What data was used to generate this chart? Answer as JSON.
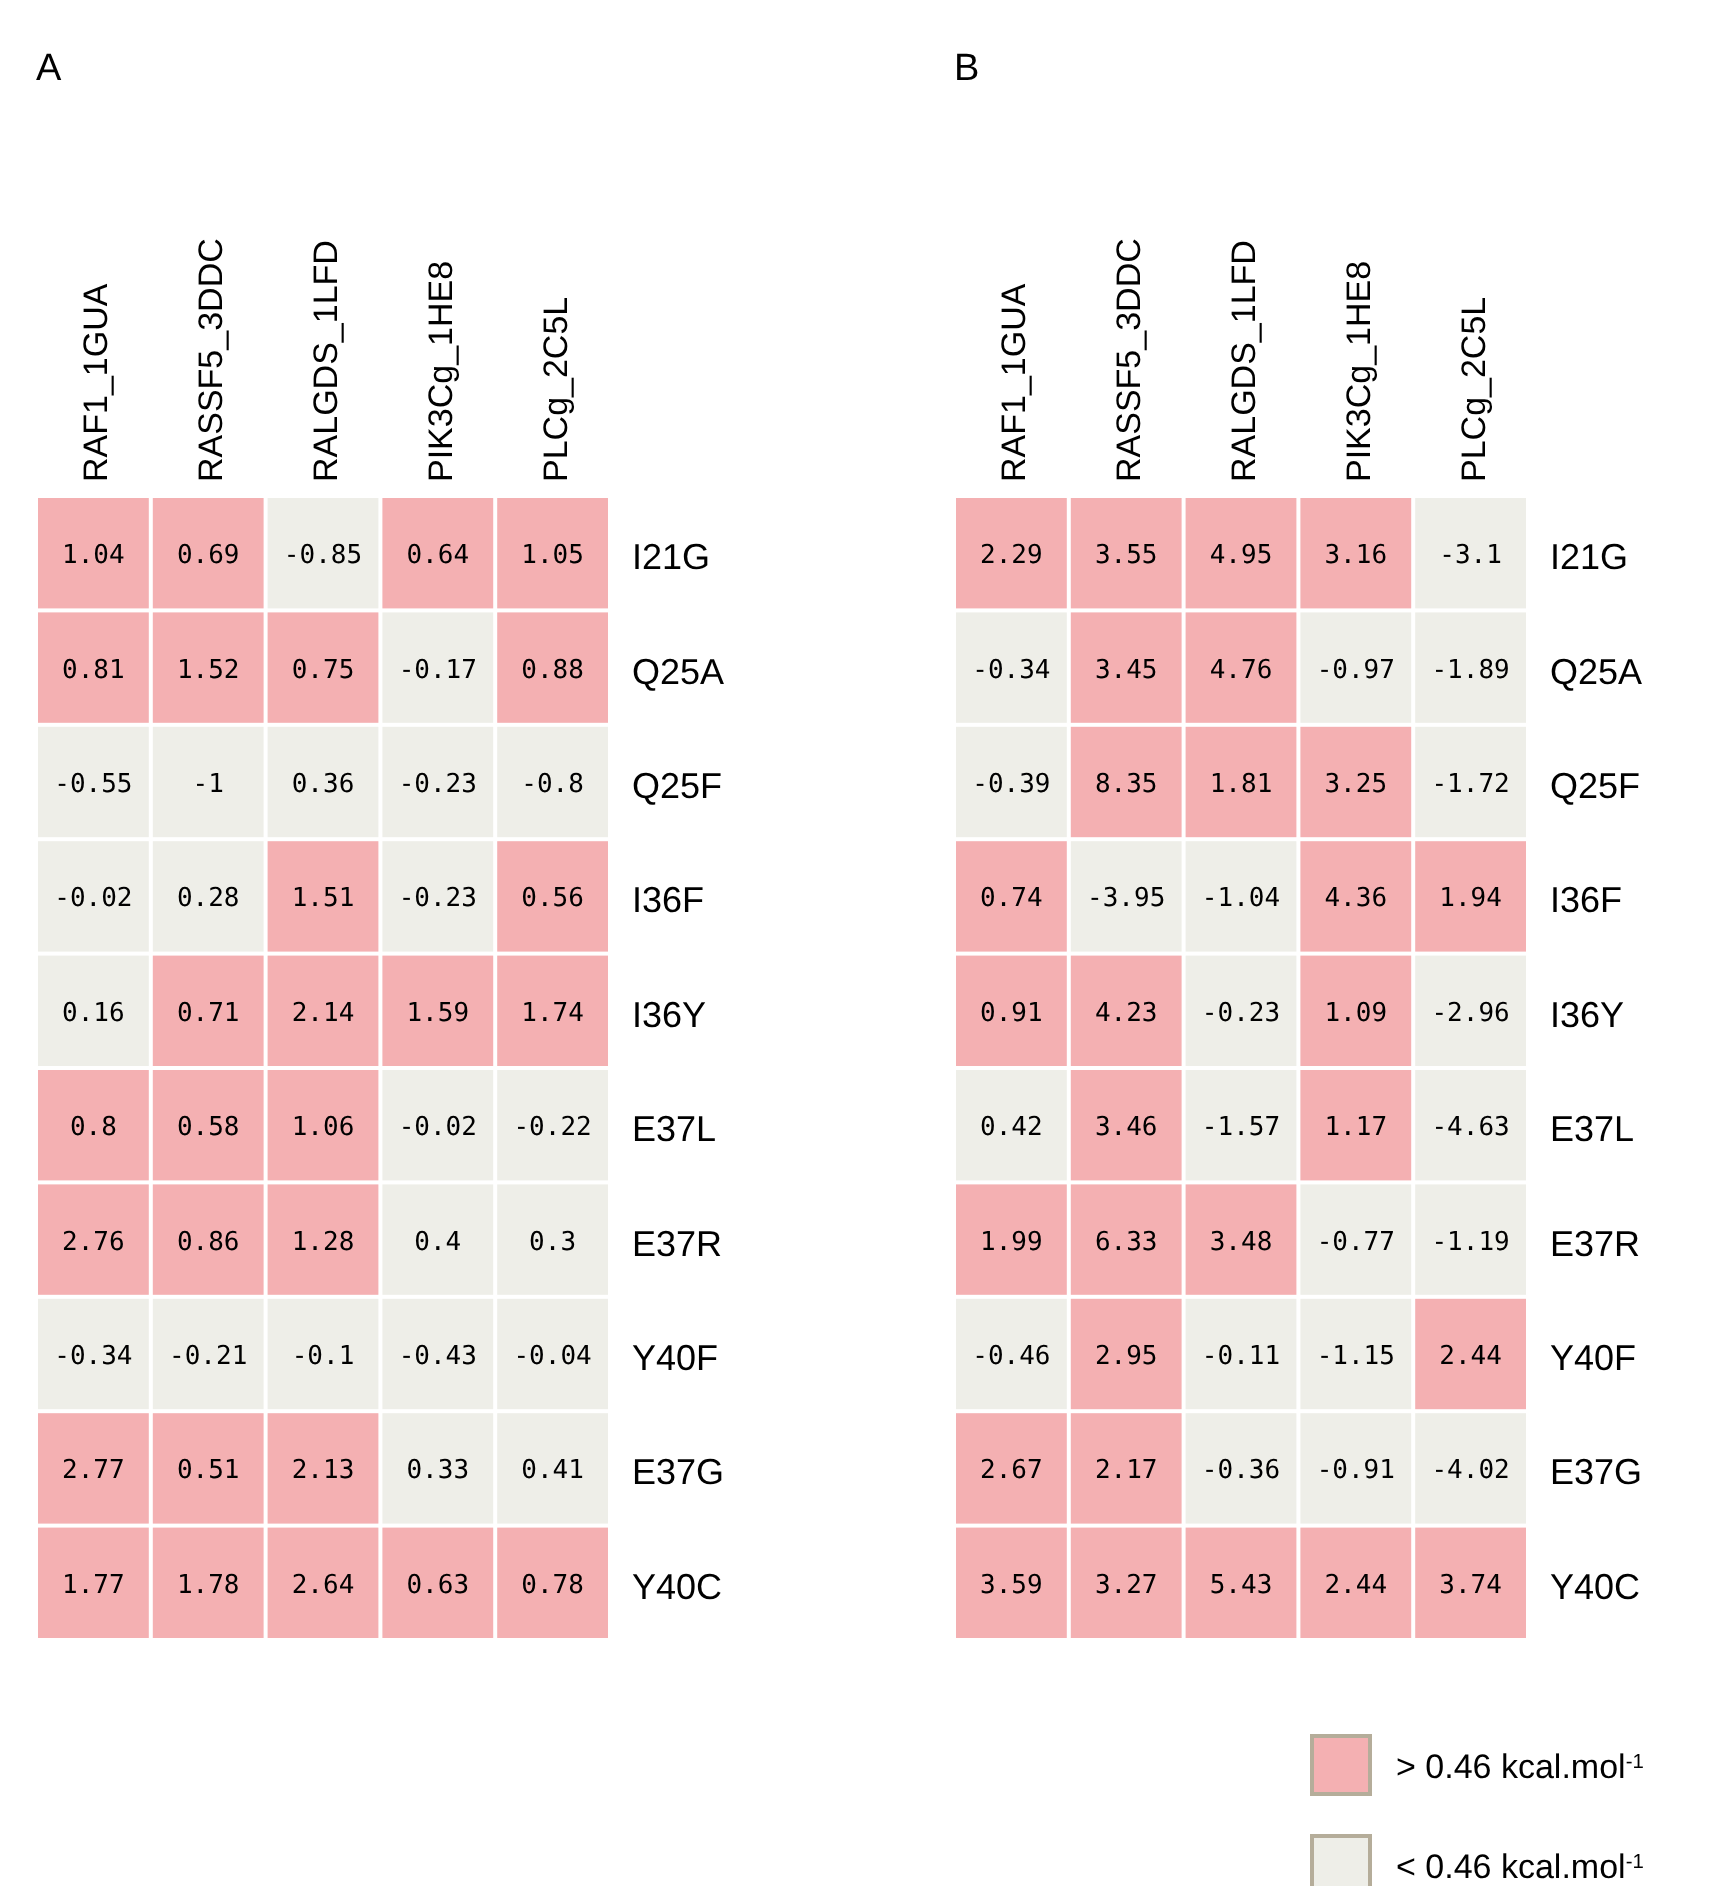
{
  "chart_data": [
    {
      "type": "heatmap",
      "title": "A",
      "categories": [
        "RAF1_1GUA",
        "RASSF5_3DDC",
        "RALGDS_1LFD",
        "PIK3Cg_1HE8",
        "PLCg_2C5L"
      ],
      "y_categories": [
        "I21G",
        "Q25A",
        "Q25F",
        "I36F",
        "I36Y",
        "E37L",
        "E37R",
        "Y40F",
        "E37G",
        "Y40C"
      ],
      "cells": [
        [
          1.04,
          0.69,
          -0.85,
          0.64,
          1.05
        ],
        [
          0.81,
          1.52,
          0.75,
          -0.17,
          0.88
        ],
        [
          -0.55,
          -1,
          0.36,
          -0.23,
          -0.8
        ],
        [
          -0.02,
          0.28,
          1.51,
          -0.23,
          0.56
        ],
        [
          0.16,
          0.71,
          2.14,
          1.59,
          1.74
        ],
        [
          0.8,
          0.58,
          1.06,
          -0.02,
          -0.22
        ],
        [
          2.76,
          0.86,
          1.28,
          0.4,
          0.3
        ],
        [
          -0.34,
          -0.21,
          -0.1,
          -0.43,
          -0.04
        ],
        [
          2.77,
          0.51,
          2.13,
          0.33,
          0.41
        ],
        [
          1.77,
          1.78,
          2.64,
          0.63,
          0.78
        ]
      ],
      "colors": [
        [
          "#f4b0b2",
          "#f4b0b2",
          "#eeeee8",
          "#f4b0b2",
          "#f4b0b2"
        ],
        [
          "#f4b0b2",
          "#f4b0b2",
          "#f4b0b2",
          "#eeeee8",
          "#f4b0b2"
        ],
        [
          "#eeeee8",
          "#eeeee8",
          "#eeeee8",
          "#eeeee8",
          "#eeeee8"
        ],
        [
          "#eeeee8",
          "#eeeee8",
          "#f4b0b2",
          "#eeeee8",
          "#f4b0b2"
        ],
        [
          "#eeeee8",
          "#f4b0b2",
          "#f4b0b2",
          "#f4b0b2",
          "#f4b0b2"
        ],
        [
          "#f4b0b2",
          "#f4b0b2",
          "#f4b0b2",
          "#eeeee8",
          "#eeeee8"
        ],
        [
          "#f4b0b2",
          "#f4b0b2",
          "#f4b0b2",
          "#eeeee8",
          "#eeeee8"
        ],
        [
          "#eeeee8",
          "#eeeee8",
          "#eeeee8",
          "#eeeee8",
          "#eeeee8"
        ],
        [
          "#f4b0b2",
          "#f4b0b2",
          "#f4b0b2",
          "#eeeee8",
          "#eeeee8"
        ],
        [
          "#f4b0b2",
          "#f4b0b2",
          "#f4b0b2",
          "#f4b0b2",
          "#f4b0b2"
        ]
      ],
      "data_labels": true
    },
    {
      "type": "heatmap",
      "title": "B",
      "categories": [
        "RAF1_1GUA",
        "RASSF5_3DDC",
        "RALGDS_1LFD",
        "PIK3Cg_1HE8",
        "PLCg_2C5L"
      ],
      "y_categories": [
        "I21G",
        "Q25A",
        "Q25F",
        "I36F",
        "I36Y",
        "E37L",
        "E37R",
        "Y40F",
        "E37G",
        "Y40C"
      ],
      "cells": [
        [
          2.29,
          3.55,
          4.95,
          3.16,
          -3.1
        ],
        [
          -0.34,
          3.45,
          4.76,
          -0.97,
          -1.89
        ],
        [
          -0.39,
          8.35,
          1.81,
          3.25,
          -1.72
        ],
        [
          0.74,
          -3.95,
          -1.04,
          4.36,
          1.94
        ],
        [
          0.91,
          4.23,
          -0.23,
          1.09,
          -2.96
        ],
        [
          0.42,
          3.46,
          -1.57,
          1.17,
          -4.63
        ],
        [
          1.99,
          6.33,
          3.48,
          -0.77,
          -1.19
        ],
        [
          -0.46,
          2.95,
          -0.11,
          -1.15,
          2.44
        ],
        [
          2.67,
          2.17,
          -0.36,
          -0.91,
          -4.02
        ],
        [
          3.59,
          3.27,
          5.43,
          2.44,
          3.74
        ]
      ],
      "colors": [
        [
          "#f4b0b2",
          "#f4b0b2",
          "#f4b0b2",
          "#f4b0b2",
          "#eeeee8"
        ],
        [
          "#eeeee8",
          "#f4b0b2",
          "#f4b0b2",
          "#eeeee8",
          "#eeeee8"
        ],
        [
          "#eeeee8",
          "#f4b0b2",
          "#f4b0b2",
          "#f4b0b2",
          "#eeeee8"
        ],
        [
          "#f4b0b2",
          "#eeeee8",
          "#eeeee8",
          "#f4b0b2",
          "#f4b0b2"
        ],
        [
          "#f4b0b2",
          "#f4b0b2",
          "#eeeee8",
          "#f4b0b2",
          "#eeeee8"
        ],
        [
          "#eeeee8",
          "#f4b0b2",
          "#eeeee8",
          "#f4b0b2",
          "#eeeee8"
        ],
        [
          "#f4b0b2",
          "#f4b0b2",
          "#f4b0b2",
          "#eeeee8",
          "#eeeee8"
        ],
        [
          "#eeeee8",
          "#f4b0b2",
          "#eeeee8",
          "#eeeee8",
          "#f4b0b2"
        ],
        [
          "#f4b0b2",
          "#f4b0b2",
          "#eeeee8",
          "#eeeee8",
          "#eeeee8"
        ],
        [
          "#f4b0b2",
          "#f4b0b2",
          "#f4b0b2",
          "#f4b0b2",
          "#f4b0b2"
        ]
      ],
      "data_labels": true
    },
    {
      "type": "other",
      "annotations": [
        "> 0.46 kcal.mol$^{-1}$",
        "< 0.46 kcal.mol$^{-1}$"
      ],
      "colors": [
        "#f4b0b2",
        "#eeeee8"
      ]
    }
  ]
}
